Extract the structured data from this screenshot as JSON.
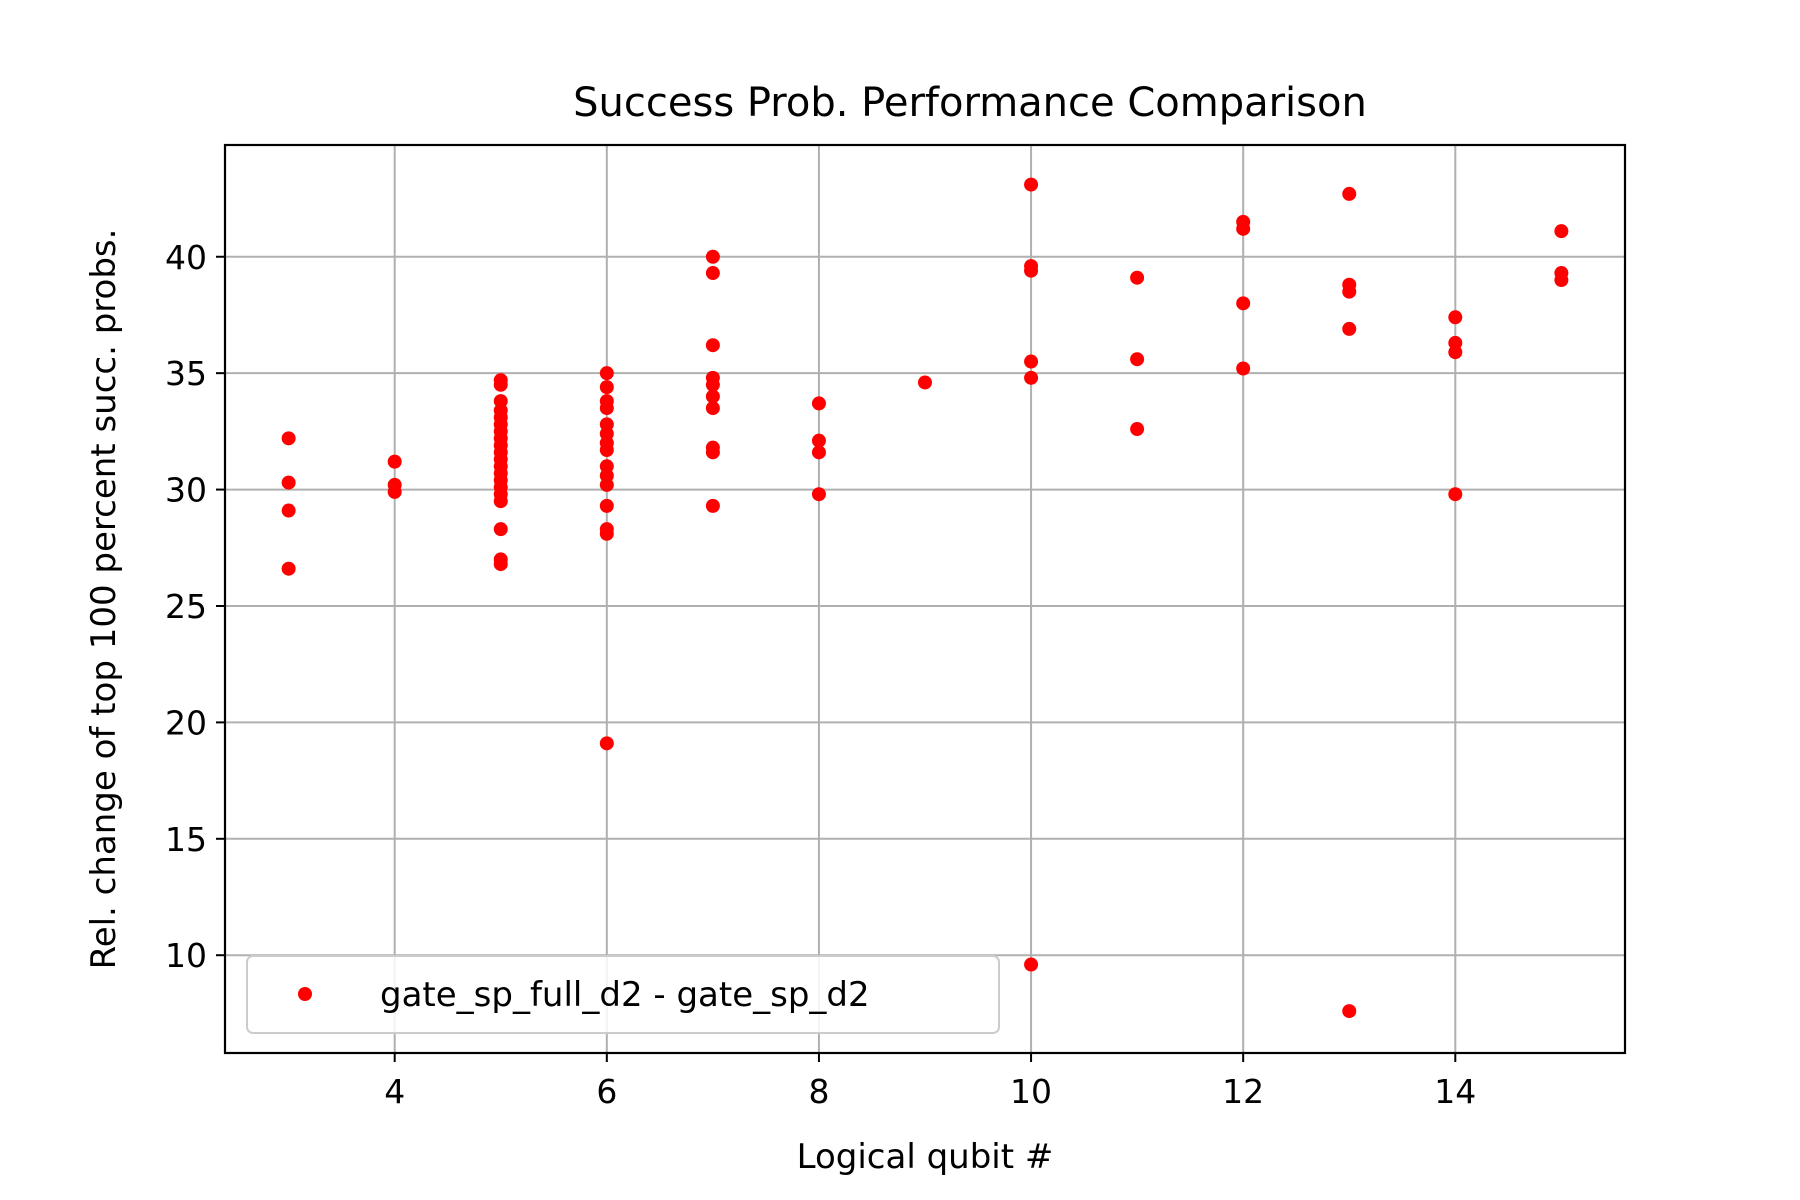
{
  "chart_data": {
    "type": "scatter",
    "title": "Success Prob. Performance Comparison",
    "xlabel": "Logical qubit #",
    "ylabel": "Rel. change of top 100 percent succ. probs.",
    "xlim": [
      2.4,
      15.6
    ],
    "ylim": [
      5.8,
      44.8
    ],
    "xticks": [
      4,
      6,
      8,
      10,
      12,
      14
    ],
    "yticks": [
      10,
      15,
      20,
      25,
      30,
      35,
      40
    ],
    "grid": true,
    "legend_position": "lower-left",
    "series": [
      {
        "name": "gate_sp_full_d2 - gate_sp_d2",
        "color": "#ff0000",
        "marker": "circle",
        "points": [
          [
            3,
            32.2
          ],
          [
            3,
            30.3
          ],
          [
            3,
            29.1
          ],
          [
            3,
            26.6
          ],
          [
            4,
            31.2
          ],
          [
            4,
            30.2
          ],
          [
            4,
            29.9
          ],
          [
            5,
            34.7
          ],
          [
            5,
            34.5
          ],
          [
            5,
            33.8
          ],
          [
            5,
            33.4
          ],
          [
            5,
            33.1
          ],
          [
            5,
            32.8
          ],
          [
            5,
            32.5
          ],
          [
            5,
            32.2
          ],
          [
            5,
            31.9
          ],
          [
            5,
            31.6
          ],
          [
            5,
            31.3
          ],
          [
            5,
            31.0
          ],
          [
            5,
            30.7
          ],
          [
            5,
            30.4
          ],
          [
            5,
            30.1
          ],
          [
            5,
            29.8
          ],
          [
            5,
            29.5
          ],
          [
            5,
            28.3
          ],
          [
            5,
            27.0
          ],
          [
            5,
            26.8
          ],
          [
            6,
            35.0
          ],
          [
            6,
            34.4
          ],
          [
            6,
            33.8
          ],
          [
            6,
            33.5
          ],
          [
            6,
            32.8
          ],
          [
            6,
            32.4
          ],
          [
            6,
            32.0
          ],
          [
            6,
            31.7
          ],
          [
            6,
            31.0
          ],
          [
            6,
            30.6
          ],
          [
            6,
            30.2
          ],
          [
            6,
            29.3
          ],
          [
            6,
            28.3
          ],
          [
            6,
            28.1
          ],
          [
            6,
            19.1
          ],
          [
            7,
            40.0
          ],
          [
            7,
            39.3
          ],
          [
            7,
            36.2
          ],
          [
            7,
            34.8
          ],
          [
            7,
            34.5
          ],
          [
            7,
            34.0
          ],
          [
            7,
            33.5
          ],
          [
            7,
            31.8
          ],
          [
            7,
            31.6
          ],
          [
            7,
            29.3
          ],
          [
            8,
            33.7
          ],
          [
            8,
            32.1
          ],
          [
            8,
            31.6
          ],
          [
            8,
            29.8
          ],
          [
            9,
            34.6
          ],
          [
            10,
            43.1
          ],
          [
            10,
            39.6
          ],
          [
            10,
            39.4
          ],
          [
            10,
            35.5
          ],
          [
            10,
            34.8
          ],
          [
            10,
            9.6
          ],
          [
            11,
            39.1
          ],
          [
            11,
            35.6
          ],
          [
            11,
            32.6
          ],
          [
            12,
            41.5
          ],
          [
            12,
            41.2
          ],
          [
            12,
            38.0
          ],
          [
            12,
            35.2
          ],
          [
            13,
            42.7
          ],
          [
            13,
            38.8
          ],
          [
            13,
            38.5
          ],
          [
            13,
            36.9
          ],
          [
            13,
            7.6
          ],
          [
            14,
            37.4
          ],
          [
            14,
            36.3
          ],
          [
            14,
            35.9
          ],
          [
            14,
            29.8
          ],
          [
            15,
            41.1
          ],
          [
            15,
            39.3
          ],
          [
            15,
            39.0
          ]
        ]
      }
    ]
  }
}
